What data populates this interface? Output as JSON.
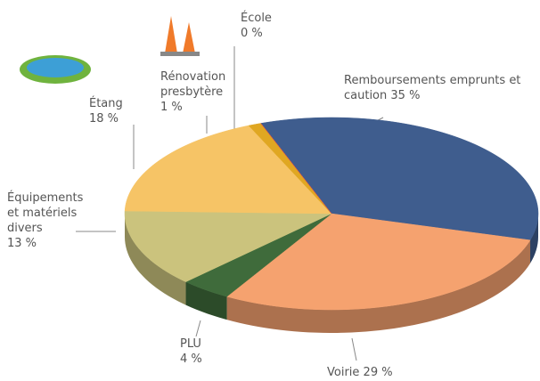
{
  "chart_data": {
    "type": "pie",
    "categories": [
      "Remboursements emprunts et caution",
      "Voirie",
      "PLU",
      "Équipements et matériels divers",
      "Étang",
      "Rénovation presbytère",
      "École"
    ],
    "values": [
      35,
      29,
      4,
      13,
      18,
      1,
      0
    ],
    "value_labels": [
      "35 %",
      "29 %",
      "4 %",
      "13 %",
      "18 %",
      "1 %",
      "0 %"
    ],
    "colors": [
      "#3f5d8e",
      "#f5a26f",
      "#3f6b3b",
      "#cbc37d",
      "#f6c466",
      "#e0a722",
      "#e84a4a"
    ]
  }
}
